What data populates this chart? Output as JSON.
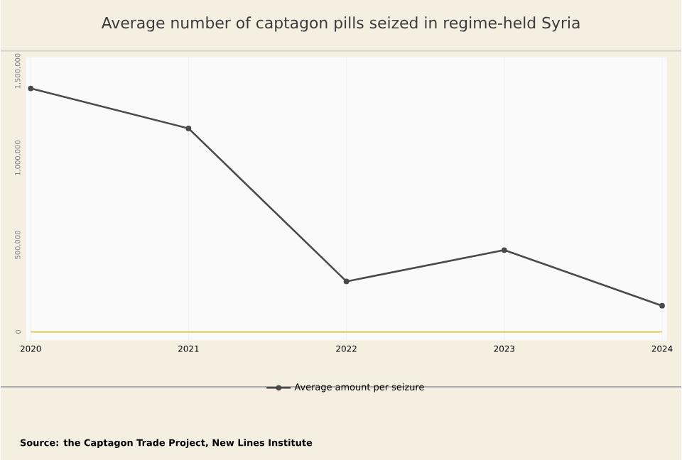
{
  "chart_data": {
    "type": "line",
    "title": "Average number of captagon pills seized in regime-held Syria",
    "categories": [
      "2020",
      "2021",
      "2022",
      "2023",
      "2024"
    ],
    "series": [
      {
        "name": "Average amount per seizure",
        "color": "#4a4a4a",
        "values": [
          1400000,
          1170000,
          290000,
          470000,
          150000
        ],
        "marker": "circle"
      },
      {
        "color": "#e3d27a",
        "values": [
          0,
          0,
          0,
          0,
          0
        ],
        "marker": "none"
      }
    ],
    "ylim": [
      -50000,
      1580000
    ],
    "yticks": [
      {
        "value": 0,
        "label": "0"
      },
      {
        "value": 500000,
        "label": "500,000"
      },
      {
        "value": 1000000,
        "label": "1,000,000"
      },
      {
        "value": 1500000,
        "label": "1,500,000"
      }
    ],
    "grid": "x",
    "legend": "bottom",
    "annotations": [
      "Source: the Captagon Trade Project, New Lines Institute"
    ]
  }
}
